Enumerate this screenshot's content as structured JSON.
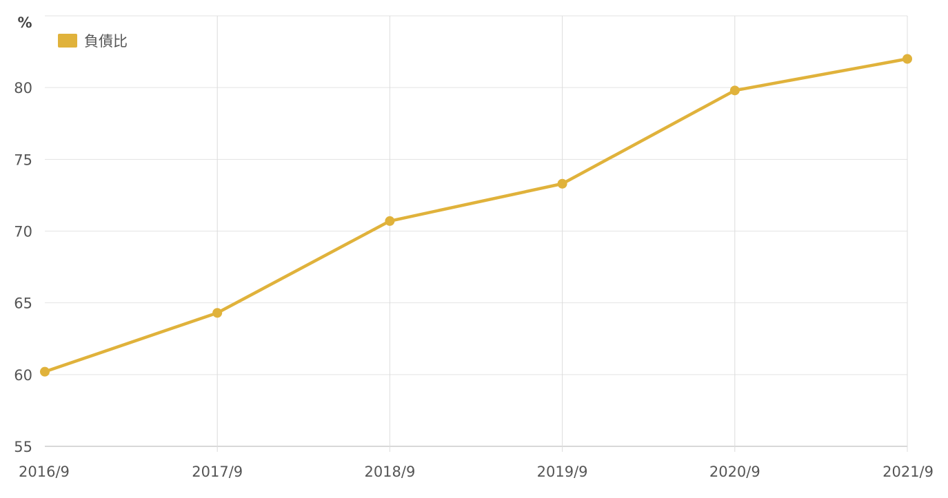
{
  "chart_data": {
    "type": "line",
    "unit_label": "%",
    "categories": [
      "2016/9",
      "2017/9",
      "2018/9",
      "2019/9",
      "2020/9",
      "2021/9"
    ],
    "series": [
      {
        "name": "負債比",
        "values": [
          60.2,
          64.3,
          70.7,
          73.3,
          79.8,
          82.0
        ],
        "color": "#e0b23b"
      }
    ],
    "ylim": [
      55,
      85
    ],
    "yticks": [
      55,
      60,
      65,
      70,
      75,
      80
    ],
    "grid": true,
    "legend_position": "top-left"
  }
}
